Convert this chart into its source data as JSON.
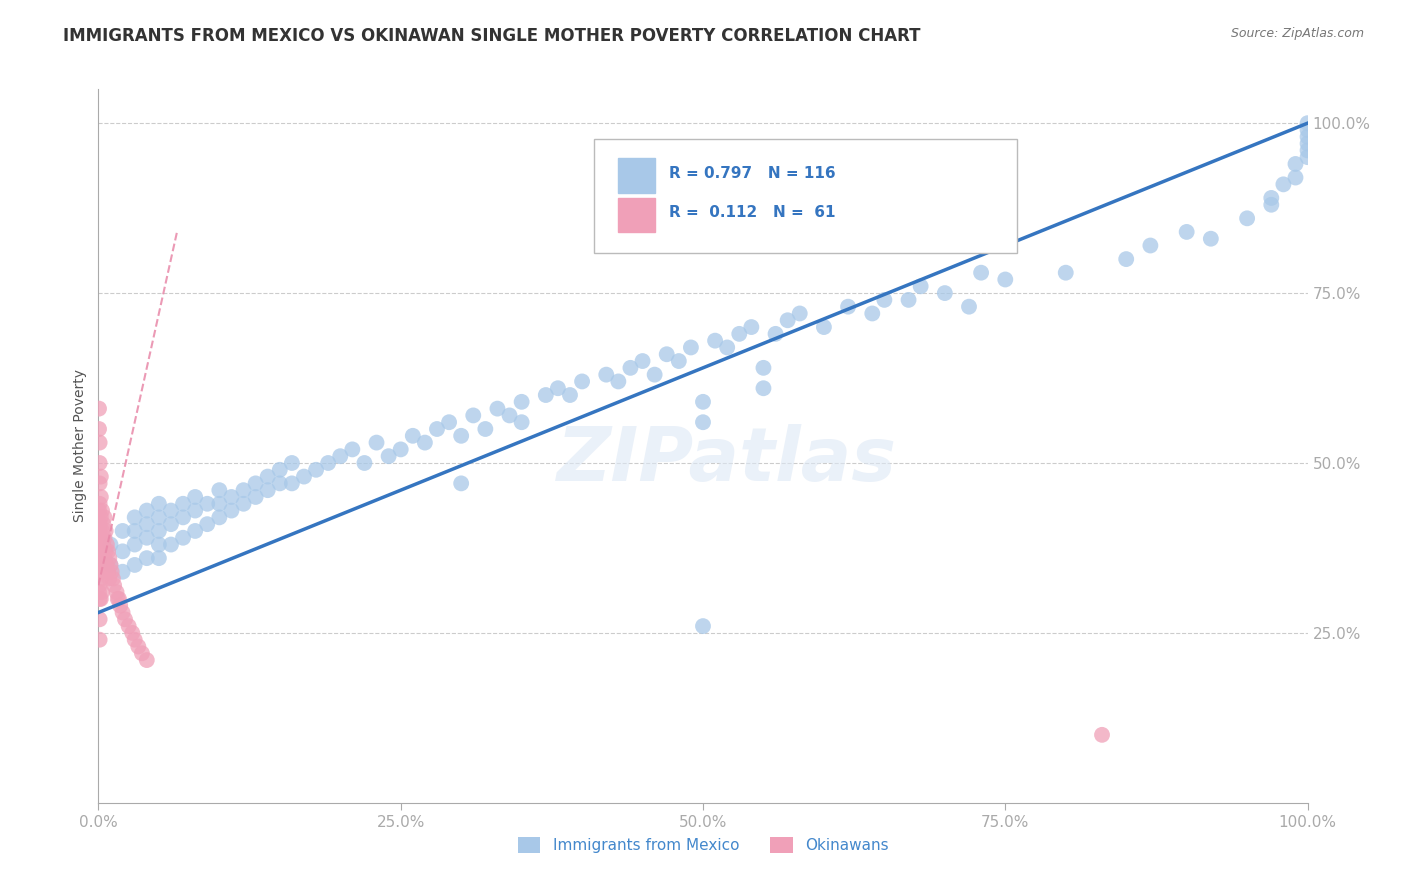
{
  "title": "IMMIGRANTS FROM MEXICO VS OKINAWAN SINGLE MOTHER POVERTY CORRELATION CHART",
  "source": "Source: ZipAtlas.com",
  "ylabel": "Single Mother Poverty",
  "watermark": "ZIPatlas",
  "blue_R": 0.797,
  "blue_N": 116,
  "pink_R": 0.112,
  "pink_N": 61,
  "blue_label": "Immigrants from Mexico",
  "pink_label": "Okinawans",
  "blue_color": "#a8c8e8",
  "pink_color": "#f0a0b8",
  "blue_line_color": "#3575c0",
  "pink_line_color": "#e888a8",
  "legend_R_color": "#3575c0",
  "title_color": "#333333",
  "title_fontsize": 12,
  "tick_label_color": "#4488cc",
  "grid_color": "#cccccc",
  "blue_slope": 0.72,
  "blue_intercept": 0.28,
  "pink_slope": 8.0,
  "pink_intercept": 0.32,
  "xlim": [
    0,
    1.0
  ],
  "ylim": [
    0,
    1.05
  ],
  "xticks": [
    0,
    0.25,
    0.5,
    0.75,
    1.0
  ],
  "xtick_labels": [
    "0.0%",
    "25.0%",
    "50.0%",
    "75.0%",
    "100.0%"
  ],
  "yticks": [
    0.25,
    0.5,
    0.75,
    1.0
  ],
  "ytick_labels": [
    "25.0%",
    "50.0%",
    "75.0%",
    "100.0%"
  ],
  "blue_points_x": [
    0.01,
    0.01,
    0.02,
    0.02,
    0.02,
    0.03,
    0.03,
    0.03,
    0.03,
    0.04,
    0.04,
    0.04,
    0.04,
    0.05,
    0.05,
    0.05,
    0.05,
    0.05,
    0.06,
    0.06,
    0.06,
    0.07,
    0.07,
    0.07,
    0.08,
    0.08,
    0.08,
    0.09,
    0.09,
    0.1,
    0.1,
    0.1,
    0.11,
    0.11,
    0.12,
    0.12,
    0.13,
    0.13,
    0.14,
    0.14,
    0.15,
    0.15,
    0.16,
    0.16,
    0.17,
    0.18,
    0.19,
    0.2,
    0.21,
    0.22,
    0.23,
    0.24,
    0.25,
    0.26,
    0.27,
    0.28,
    0.29,
    0.3,
    0.31,
    0.32,
    0.33,
    0.34,
    0.35,
    0.37,
    0.38,
    0.39,
    0.4,
    0.42,
    0.43,
    0.44,
    0.45,
    0.46,
    0.47,
    0.48,
    0.49,
    0.5,
    0.51,
    0.52,
    0.53,
    0.54,
    0.56,
    0.57,
    0.58,
    0.6,
    0.62,
    0.64,
    0.65,
    0.67,
    0.68,
    0.7,
    0.72,
    0.73,
    0.75,
    0.8,
    0.85,
    0.87,
    0.9,
    0.92,
    0.95,
    0.97,
    0.97,
    0.98,
    0.99,
    0.99,
    1.0,
    1.0,
    1.0,
    1.0,
    1.0,
    1.0,
    0.5,
    0.5,
    0.55,
    0.55,
    0.3,
    0.35
  ],
  "blue_points_y": [
    0.35,
    0.38,
    0.34,
    0.37,
    0.4,
    0.35,
    0.38,
    0.4,
    0.42,
    0.36,
    0.39,
    0.41,
    0.43,
    0.36,
    0.38,
    0.4,
    0.42,
    0.44,
    0.38,
    0.41,
    0.43,
    0.39,
    0.42,
    0.44,
    0.4,
    0.43,
    0.45,
    0.41,
    0.44,
    0.42,
    0.44,
    0.46,
    0.43,
    0.45,
    0.44,
    0.46,
    0.45,
    0.47,
    0.46,
    0.48,
    0.47,
    0.49,
    0.47,
    0.5,
    0.48,
    0.49,
    0.5,
    0.51,
    0.52,
    0.5,
    0.53,
    0.51,
    0.52,
    0.54,
    0.53,
    0.55,
    0.56,
    0.54,
    0.57,
    0.55,
    0.58,
    0.57,
    0.59,
    0.6,
    0.61,
    0.6,
    0.62,
    0.63,
    0.62,
    0.64,
    0.65,
    0.63,
    0.66,
    0.65,
    0.67,
    0.26,
    0.68,
    0.67,
    0.69,
    0.7,
    0.69,
    0.71,
    0.72,
    0.7,
    0.73,
    0.72,
    0.74,
    0.74,
    0.76,
    0.75,
    0.73,
    0.78,
    0.77,
    0.78,
    0.8,
    0.82,
    0.84,
    0.83,
    0.86,
    0.88,
    0.89,
    0.91,
    0.92,
    0.94,
    0.95,
    0.96,
    0.97,
    0.98,
    0.99,
    1.0,
    0.59,
    0.56,
    0.64,
    0.61,
    0.47,
    0.56
  ],
  "pink_points_x": [
    0.0005,
    0.0005,
    0.0005,
    0.0005,
    0.0005,
    0.001,
    0.001,
    0.001,
    0.001,
    0.001,
    0.001,
    0.001,
    0.001,
    0.001,
    0.002,
    0.002,
    0.002,
    0.002,
    0.002,
    0.002,
    0.003,
    0.003,
    0.003,
    0.003,
    0.003,
    0.004,
    0.004,
    0.004,
    0.005,
    0.005,
    0.005,
    0.006,
    0.006,
    0.007,
    0.007,
    0.008,
    0.008,
    0.009,
    0.009,
    0.01,
    0.011,
    0.012,
    0.013,
    0.015,
    0.016,
    0.017,
    0.018,
    0.02,
    0.022,
    0.025,
    0.028,
    0.03,
    0.033,
    0.036,
    0.04,
    0.0005,
    0.0005,
    0.001,
    0.001,
    0.002,
    0.83
  ],
  "pink_points_y": [
    0.43,
    0.4,
    0.37,
    0.34,
    0.31,
    0.47,
    0.44,
    0.41,
    0.38,
    0.35,
    0.32,
    0.3,
    0.27,
    0.24,
    0.45,
    0.42,
    0.39,
    0.36,
    0.33,
    0.3,
    0.43,
    0.4,
    0.37,
    0.34,
    0.31,
    0.41,
    0.38,
    0.35,
    0.42,
    0.39,
    0.36,
    0.4,
    0.37,
    0.38,
    0.35,
    0.37,
    0.34,
    0.36,
    0.33,
    0.35,
    0.34,
    0.33,
    0.32,
    0.31,
    0.3,
    0.3,
    0.29,
    0.28,
    0.27,
    0.26,
    0.25,
    0.24,
    0.23,
    0.22,
    0.21,
    0.55,
    0.58,
    0.5,
    0.53,
    0.48,
    0.1
  ]
}
